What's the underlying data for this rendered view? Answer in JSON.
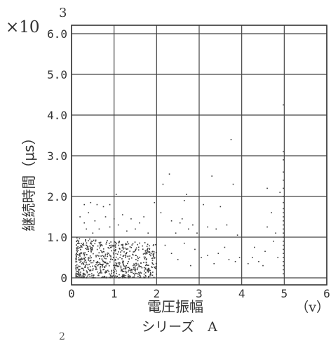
{
  "chart_data": {
    "type": "scatter",
    "multiplier_label": "×10",
    "multiplier_exponent": "3",
    "ylabel": "継続時間（μs）",
    "xlabel": "電圧振幅",
    "x_unit": "（v）",
    "series_caption": "シリーズ　A",
    "bottom_fragment": "2",
    "xlim": [
      0,
      6
    ],
    "ylim": [
      0,
      6.4
    ],
    "x_ticks": [
      "0",
      "1",
      "2",
      "3",
      "4",
      "5",
      "6"
    ],
    "y_ticks": [
      "0",
      "1.0",
      "2.0",
      "3.0",
      "4.0",
      "5.0",
      "6.0"
    ],
    "x_tick_values": [
      0,
      1,
      2,
      3,
      4,
      5,
      6
    ],
    "y_tick_values": [
      0,
      1,
      2,
      3,
      4,
      5,
      6
    ],
    "grid": true,
    "dense_region": {
      "x": [
        0.1,
        2.0
      ],
      "y": [
        0.0,
        1.0
      ],
      "approx_point_count": 700
    },
    "points": [
      [
        0.3,
        1.8
      ],
      [
        0.45,
        1.85
      ],
      [
        0.6,
        1.8
      ],
      [
        0.75,
        1.75
      ],
      [
        0.9,
        1.8
      ],
      [
        1.05,
        2.05
      ],
      [
        0.2,
        1.5
      ],
      [
        0.3,
        1.35
      ],
      [
        0.4,
        1.6
      ],
      [
        0.55,
        1.4
      ],
      [
        0.65,
        1.2
      ],
      [
        0.8,
        1.5
      ],
      [
        0.9,
        1.25
      ],
      [
        1.0,
        1.45
      ],
      [
        1.1,
        1.3
      ],
      [
        1.2,
        1.55
      ],
      [
        1.3,
        1.15
      ],
      [
        1.4,
        1.45
      ],
      [
        1.5,
        1.2
      ],
      [
        1.6,
        1.35
      ],
      [
        1.7,
        1.5
      ],
      [
        1.8,
        1.1
      ],
      [
        0.5,
        1.1
      ],
      [
        0.35,
        1.2
      ],
      [
        1.95,
        1.85
      ],
      [
        2.1,
        1.6
      ],
      [
        2.15,
        2.3
      ],
      [
        2.3,
        2.55
      ],
      [
        2.35,
        1.4
      ],
      [
        2.45,
        1.1
      ],
      [
        2.55,
        1.35
      ],
      [
        2.6,
        1.45
      ],
      [
        2.65,
        1.9
      ],
      [
        2.7,
        2.05
      ],
      [
        2.75,
        1.2
      ],
      [
        2.85,
        1.3
      ],
      [
        2.95,
        1.1
      ],
      [
        3.1,
        1.8
      ],
      [
        3.2,
        1.25
      ],
      [
        3.3,
        2.5
      ],
      [
        3.4,
        1.2
      ],
      [
        3.5,
        1.75
      ],
      [
        3.65,
        1.3
      ],
      [
        3.75,
        3.4
      ],
      [
        3.8,
        2.3
      ],
      [
        3.9,
        1.05
      ],
      [
        2.2,
        0.8
      ],
      [
        2.35,
        0.6
      ],
      [
        2.5,
        0.45
      ],
      [
        2.65,
        0.85
      ],
      [
        2.8,
        0.3
      ],
      [
        2.9,
        0.7
      ],
      [
        3.05,
        0.5
      ],
      [
        3.2,
        0.55
      ],
      [
        3.35,
        0.35
      ],
      [
        3.45,
        0.6
      ],
      [
        3.6,
        0.75
      ],
      [
        3.7,
        0.45
      ],
      [
        3.85,
        0.4
      ],
      [
        3.95,
        0.5
      ],
      [
        4.15,
        0.35
      ],
      [
        4.25,
        0.5
      ],
      [
        4.3,
        0.75
      ],
      [
        4.4,
        0.4
      ],
      [
        4.5,
        0.3
      ],
      [
        4.55,
        0.65
      ],
      [
        4.6,
        1.25
      ],
      [
        4.7,
        1.6
      ],
      [
        4.75,
        0.9
      ],
      [
        4.8,
        1.1
      ],
      [
        4.85,
        0.5
      ],
      [
        4.9,
        2.1
      ],
      [
        4.6,
        2.2
      ]
    ],
    "vertical_cluster": {
      "x": 4.98,
      "y_values": [
        0.1,
        0.2,
        0.3,
        0.4,
        0.5,
        0.6,
        0.7,
        0.8,
        0.9,
        1.0,
        1.1,
        1.2,
        1.3,
        1.4,
        1.5,
        1.6,
        1.7,
        1.85,
        2.0,
        2.2,
        2.4,
        2.6,
        2.9,
        3.1,
        4.25
      ]
    }
  }
}
